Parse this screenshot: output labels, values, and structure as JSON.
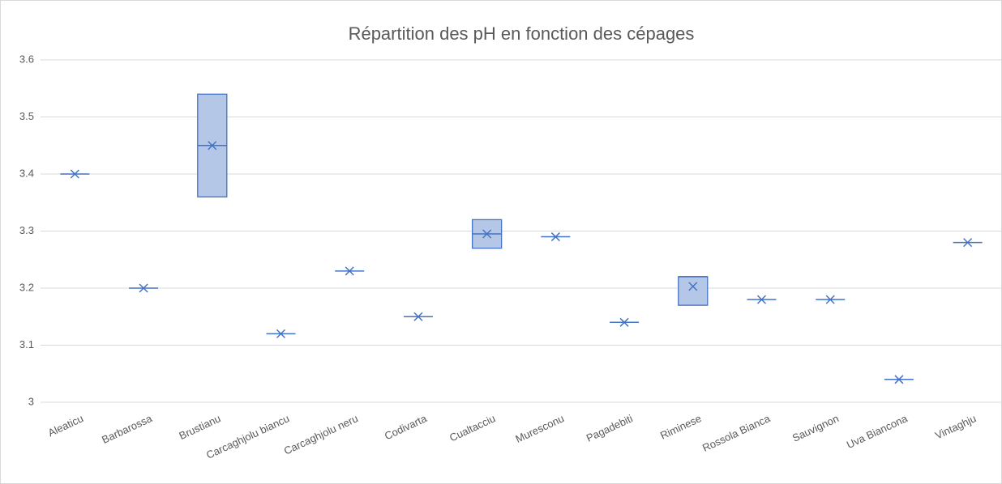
{
  "chart_data": {
    "type": "box",
    "title": "Répartition des pH en fonction des cépages",
    "categories": [
      "Aleaticu",
      "Barbarossa",
      "Brustianu",
      "Carcaghjolu biancu",
      "Carcaghjolu neru",
      "Codivarta",
      "Cualtacciu",
      "Muresconu",
      "Pagadebiti",
      "Riminese",
      "Rossola Bianca",
      "Sauvignon",
      "Uva Biancona",
      "Vintaghju"
    ],
    "series": [
      {
        "color": "#4472c4",
        "fill": "#b4c7e7",
        "q1": [
          3.4,
          3.2,
          3.36,
          3.12,
          3.23,
          3.15,
          3.27,
          3.29,
          3.14,
          3.17,
          3.18,
          3.18,
          3.04,
          3.28
        ],
        "median": [
          3.4,
          3.2,
          3.45,
          3.12,
          3.23,
          3.15,
          3.295,
          3.29,
          3.14,
          3.22,
          3.18,
          3.18,
          3.04,
          3.28
        ],
        "q3": [
          3.4,
          3.2,
          3.54,
          3.12,
          3.23,
          3.15,
          3.32,
          3.29,
          3.14,
          3.22,
          3.18,
          3.18,
          3.04,
          3.28
        ],
        "mean": [
          3.4,
          3.2,
          3.45,
          3.12,
          3.23,
          3.15,
          3.295,
          3.29,
          3.14,
          3.203,
          3.18,
          3.18,
          3.04,
          3.28
        ]
      }
    ],
    "ylim": [
      3,
      3.6
    ],
    "yticks": [
      3,
      3.1,
      3.2,
      3.3,
      3.4,
      3.5,
      3.6
    ],
    "grid": true
  }
}
